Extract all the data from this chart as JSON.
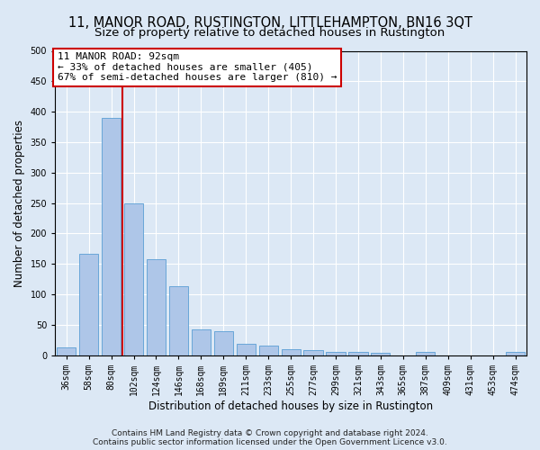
{
  "title": "11, MANOR ROAD, RUSTINGTON, LITTLEHAMPTON, BN16 3QT",
  "subtitle": "Size of property relative to detached houses in Rustington",
  "xlabel": "Distribution of detached houses by size in Rustington",
  "ylabel": "Number of detached properties",
  "categories": [
    "36sqm",
    "58sqm",
    "80sqm",
    "102sqm",
    "124sqm",
    "146sqm",
    "168sqm",
    "189sqm",
    "211sqm",
    "233sqm",
    "255sqm",
    "277sqm",
    "299sqm",
    "321sqm",
    "343sqm",
    "365sqm",
    "387sqm",
    "409sqm",
    "431sqm",
    "453sqm",
    "474sqm"
  ],
  "values": [
    13,
    166,
    390,
    250,
    157,
    114,
    43,
    39,
    19,
    16,
    10,
    9,
    6,
    5,
    4,
    0,
    5,
    0,
    0,
    0,
    5
  ],
  "bar_color": "#aec6e8",
  "bar_edge_color": "#5a9fd4",
  "vline_color": "#cc0000",
  "vline_x_index": 2,
  "annotation_line1": "11 MANOR ROAD: 92sqm",
  "annotation_line2": "← 33% of detached houses are smaller (405)",
  "annotation_line3": "67% of semi-detached houses are larger (810) →",
  "annotation_box_color": "#ffffff",
  "annotation_box_edge_color": "#cc0000",
  "ylim": [
    0,
    500
  ],
  "yticks": [
    0,
    50,
    100,
    150,
    200,
    250,
    300,
    350,
    400,
    450,
    500
  ],
  "bg_color": "#dce8f5",
  "plot_bg_color": "#dce8f5",
  "grid_color": "#ffffff",
  "footer_line1": "Contains HM Land Registry data © Crown copyright and database right 2024.",
  "footer_line2": "Contains public sector information licensed under the Open Government Licence v3.0.",
  "title_fontsize": 10.5,
  "subtitle_fontsize": 9.5,
  "xlabel_fontsize": 8.5,
  "ylabel_fontsize": 8.5,
  "tick_fontsize": 7,
  "annot_fontsize": 8,
  "footer_fontsize": 6.5
}
